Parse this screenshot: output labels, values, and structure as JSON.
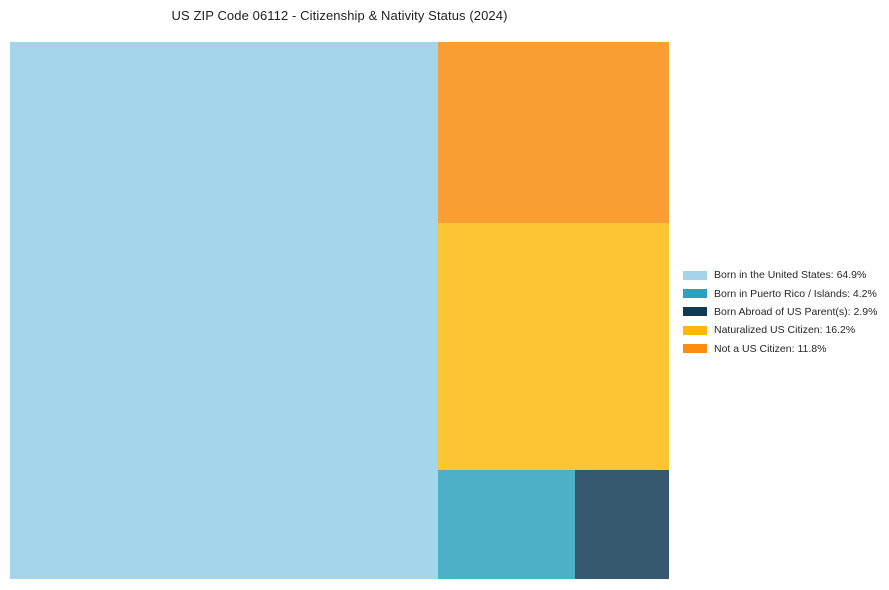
{
  "chart_data": {
    "type": "treemap",
    "title": "US ZIP Code 06112 - Citizenship & Nativity Status (2024)",
    "legend_position": "center right, outside plot",
    "legend_label_format": "{label}: {value}%",
    "background_color": "#ffffff",
    "items": [
      {
        "label": "Born in the United States",
        "value": 64.9,
        "color": "#A5D5EB",
        "legend_color": "#A5D3E9"
      },
      {
        "label": "Born in Puerto Rico / Islands",
        "value": 4.2,
        "color": "#4DB0C6",
        "legend_color": "#2CA0BE"
      },
      {
        "label": "Born Abroad of US Parent(s)",
        "value": 2.9,
        "color": "#36596F",
        "legend_color": "#103A52"
      },
      {
        "label": "Naturalized US Citizen",
        "value": 16.2,
        "color": "#FDC433",
        "legend_color": "#FFB60D"
      },
      {
        "label": "Not a US Citizen",
        "value": 11.8,
        "color": "#F99E33",
        "legend_color": "#F88D0E"
      }
    ]
  }
}
